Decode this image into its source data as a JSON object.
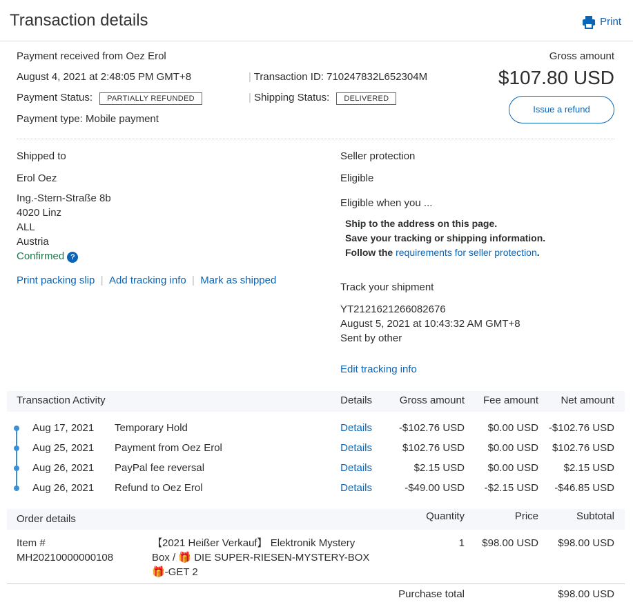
{
  "header": {
    "title": "Transaction details",
    "print_label": "Print"
  },
  "summary": {
    "received_from": "Payment received from Oez Erol",
    "date": "August 4, 2021 at 2:48:05 PM GMT+8",
    "transaction_id": "Transaction ID: 710247832L652304M",
    "payment_status_label": "Payment Status:",
    "payment_status": "PARTIALLY REFUNDED",
    "shipping_status_label": "Shipping Status:",
    "shipping_status": "DELIVERED",
    "payment_type": "Payment type: Mobile payment",
    "gross_label": "Gross amount",
    "gross_amount": "$107.80 USD",
    "refund_button": "Issue a refund"
  },
  "shipping": {
    "heading": "Shipped to",
    "name": "Erol Oez",
    "address": [
      "Ing.-Stern-Straße 8b",
      "4020 Linz",
      "ALL",
      "Austria"
    ],
    "confirmed": "Confirmed",
    "links": [
      "Print packing slip",
      "Add tracking info",
      "Mark as shipped"
    ]
  },
  "protection": {
    "heading": "Seller protection",
    "status": "Eligible",
    "when": "Eligible when you ...",
    "items": [
      "Ship to the address on this page.",
      "Save your tracking or shipping information."
    ],
    "follow_prefix": "Follow the ",
    "follow_link": "requirements for seller protection",
    "follow_suffix": "."
  },
  "tracking": {
    "heading": "Track your shipment",
    "number": "YT2121621266082676",
    "date": "August 5, 2021 at 10:43:32 AM GMT+8",
    "sent_by": "Sent by other",
    "edit": "Edit tracking info"
  },
  "activity": {
    "headers": [
      "Transaction Activity",
      "Details",
      "Gross amount",
      "Fee amount",
      "Net amount"
    ],
    "rows": [
      {
        "date": "Aug 17, 2021",
        "desc": "Temporary Hold",
        "details": "Details",
        "gross": "-$102.76 USD",
        "fee": "$0.00 USD",
        "net": "-$102.76 USD"
      },
      {
        "date": "Aug 25, 2021",
        "desc": "Payment from Oez Erol",
        "details": "Details",
        "gross": "$102.76 USD",
        "fee": "$0.00 USD",
        "net": "$102.76 USD"
      },
      {
        "date": "Aug 26, 2021",
        "desc": "PayPal fee reversal",
        "details": "Details",
        "gross": "$2.15 USD",
        "fee": "$0.00 USD",
        "net": "$2.15 USD"
      },
      {
        "date": "Aug 26, 2021",
        "desc": "Refund to Oez Erol",
        "details": "Details",
        "gross": "-$49.00 USD",
        "fee": "-$2.15 USD",
        "net": "-$46.85 USD"
      }
    ]
  },
  "order": {
    "headers": [
      "Order details",
      "Quantity",
      "Price",
      "Subtotal"
    ],
    "item_label": "Item #",
    "item_number": "MH20210000000108",
    "desc_lines": [
      "【2021 Heißer Verkauf】 Elektronik Mystery",
      "Box / 🎁 DIE SUPER-RIESEN-MYSTERY-BOX",
      "🎁-GET 2"
    ],
    "quantity": "1",
    "price": "$98.00 USD",
    "subtotal": "$98.00 USD",
    "total_label": "Purchase total",
    "total": "$98.00 USD"
  }
}
